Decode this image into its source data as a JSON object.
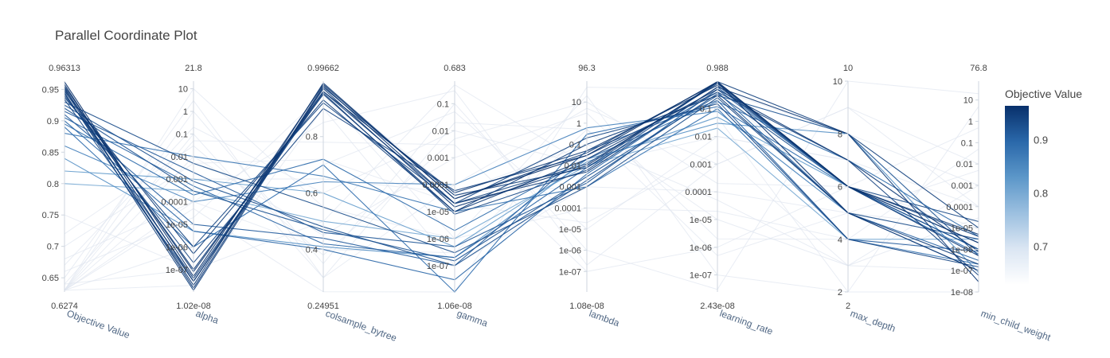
{
  "chart_data": {
    "type": "parallel_coordinates",
    "title": "Parallel Coordinate Plot",
    "colorbar": {
      "title": "Objective Value",
      "ticks": [
        "0.9",
        "0.8",
        "0.7"
      ],
      "range": [
        0.6274,
        0.96313
      ],
      "colors": [
        "#ffffff",
        "#dbe6f3",
        "#9cc0e0",
        "#5c97c9",
        "#2a68aa",
        "#08306b"
      ]
    },
    "axes": [
      {
        "label": "Objective Value",
        "scale": "linear",
        "range": [
          0.6274,
          0.96313
        ],
        "max_label": "0.96313",
        "min_label": "0.6274",
        "ticks": [
          {
            "v": 0.95,
            "t": "0.95"
          },
          {
            "v": 0.9,
            "t": "0.9"
          },
          {
            "v": 0.85,
            "t": "0.85"
          },
          {
            "v": 0.8,
            "t": "0.8"
          },
          {
            "v": 0.75,
            "t": "0.75"
          },
          {
            "v": 0.7,
            "t": "0.7"
          },
          {
            "v": 0.65,
            "t": "0.65"
          }
        ]
      },
      {
        "label": "alpha",
        "scale": "log",
        "range": [
          1.02e-08,
          21.8
        ],
        "max_label": "21.8",
        "min_label": "1.02e-08",
        "ticks": [
          {
            "v": 10,
            "t": "10"
          },
          {
            "v": 1,
            "t": "1"
          },
          {
            "v": 0.1,
            "t": "0.1"
          },
          {
            "v": 0.01,
            "t": "0.01"
          },
          {
            "v": 0.001,
            "t": "0.001"
          },
          {
            "v": 0.0001,
            "t": "0.0001"
          },
          {
            "v": 1e-05,
            "t": "1e-05"
          },
          {
            "v": 1e-06,
            "t": "1e-06"
          },
          {
            "v": 1e-07,
            "t": "1e-07"
          }
        ]
      },
      {
        "label": "colsample_bytree",
        "scale": "linear",
        "range": [
          0.24951,
          0.99662
        ],
        "max_label": "0.99662",
        "min_label": "0.24951",
        "ticks": [
          {
            "v": 0.8,
            "t": "0.8"
          },
          {
            "v": 0.6,
            "t": "0.6"
          },
          {
            "v": 0.4,
            "t": "0.4"
          }
        ]
      },
      {
        "label": "gamma",
        "scale": "log",
        "range": [
          1.06e-08,
          0.683
        ],
        "max_label": "0.683",
        "min_label": "1.06e-08",
        "ticks": [
          {
            "v": 0.1,
            "t": "0.1"
          },
          {
            "v": 0.01,
            "t": "0.01"
          },
          {
            "v": 0.001,
            "t": "0.001"
          },
          {
            "v": 0.0001,
            "t": "0.0001"
          },
          {
            "v": 1e-05,
            "t": "1e-05"
          },
          {
            "v": 1e-06,
            "t": "1e-06"
          },
          {
            "v": 1e-07,
            "t": "1e-07"
          }
        ]
      },
      {
        "label": "lambda",
        "scale": "log",
        "range": [
          1.08e-08,
          96.3
        ],
        "max_label": "96.3",
        "min_label": "1.08e-08",
        "ticks": [
          {
            "v": 10,
            "t": "10"
          },
          {
            "v": 1,
            "t": "1"
          },
          {
            "v": 0.1,
            "t": "0.1"
          },
          {
            "v": 0.01,
            "t": "0.01"
          },
          {
            "v": 0.001,
            "t": "0.001"
          },
          {
            "v": 0.0001,
            "t": "0.0001"
          },
          {
            "v": 1e-05,
            "t": "1e-05"
          },
          {
            "v": 1e-06,
            "t": "1e-06"
          },
          {
            "v": 1e-07,
            "t": "1e-07"
          }
        ]
      },
      {
        "label": "learning_rate",
        "scale": "log",
        "range": [
          2.43e-08,
          0.988
        ],
        "max_label": "0.988",
        "min_label": "2.43e-08",
        "ticks": [
          {
            "v": 0.1,
            "t": "0.1"
          },
          {
            "v": 0.01,
            "t": "0.01"
          },
          {
            "v": 0.001,
            "t": "0.001"
          },
          {
            "v": 0.0001,
            "t": "0.0001"
          },
          {
            "v": 1e-05,
            "t": "1e-05"
          },
          {
            "v": 1e-06,
            "t": "1e-06"
          },
          {
            "v": 1e-07,
            "t": "1e-07"
          }
        ]
      },
      {
        "label": "max_depth",
        "scale": "linear",
        "range": [
          2,
          10
        ],
        "max_label": "10",
        "min_label": "2",
        "ticks": [
          {
            "v": 10,
            "t": "10"
          },
          {
            "v": 8,
            "t": "8"
          },
          {
            "v": 6,
            "t": "6"
          },
          {
            "v": 4,
            "t": "4"
          },
          {
            "v": 2,
            "t": "2"
          }
        ]
      },
      {
        "label": "min_child_weight",
        "scale": "log",
        "range": [
          1e-08,
          76.8
        ],
        "max_label": "76.8",
        "min_label": "",
        "ticks": [
          {
            "v": 10,
            "t": "10"
          },
          {
            "v": 1,
            "t": "1"
          },
          {
            "v": 0.1,
            "t": "0.1"
          },
          {
            "v": 0.01,
            "t": "0.01"
          },
          {
            "v": 0.001,
            "t": "0.001"
          },
          {
            "v": 0.0001,
            "t": "0.0001"
          },
          {
            "v": 1e-05,
            "t": "1e-05"
          },
          {
            "v": 1e-06,
            "t": "1e-06"
          },
          {
            "v": 1e-07,
            "t": "1e-07"
          },
          {
            "v": 1e-08,
            "t": "1e-08"
          }
        ]
      }
    ],
    "trials": [
      {
        "v": [
          0.962,
          5e-08,
          0.985,
          3e-05,
          0.03,
          0.95,
          6,
          2e-06
        ]
      },
      {
        "v": [
          0.958,
          3e-08,
          0.97,
          1.5e-05,
          0.01,
          0.9,
          5,
          1e-07
        ]
      },
      {
        "v": [
          0.955,
          8e-08,
          0.96,
          5e-05,
          0.05,
          0.7,
          6,
          5e-06
        ]
      },
      {
        "v": [
          0.953,
          1.5e-08,
          0.98,
          2e-05,
          0.005,
          0.6,
          8,
          3e-08
        ]
      },
      {
        "v": [
          0.951,
          1e-07,
          0.95,
          1e-05,
          0.02,
          0.5,
          7,
          8e-07
        ]
      },
      {
        "v": [
          0.949,
          2e-08,
          0.99,
          3e-05,
          0.04,
          0.88,
          6,
          5e-07
        ]
      },
      {
        "v": [
          0.947,
          5e-07,
          0.93,
          1e-05,
          0.1,
          0.3,
          5,
          2e-07
        ]
      },
      {
        "v": [
          0.945,
          1.2e-08,
          0.975,
          4e-05,
          0.008,
          0.95,
          8,
          1e-05
        ]
      },
      {
        "v": [
          0.943,
          4e-08,
          0.96,
          2e-05,
          0.012,
          0.8,
          6,
          4e-06
        ]
      },
      {
        "v": [
          0.94,
          2e-07,
          0.9,
          6e-05,
          0.03,
          0.4,
          7,
          6e-08
        ]
      },
      {
        "v": [
          0.937,
          1e-06,
          0.92,
          2e-05,
          0.2,
          0.15,
          4,
          1.5e-07
        ]
      },
      {
        "v": [
          0.934,
          3e-08,
          0.955,
          8e-06,
          0.006,
          0.9,
          6,
          2e-05
        ]
      },
      {
        "v": [
          0.93,
          0.005,
          0.55,
          3e-07,
          0.001,
          0.25,
          5,
          3e-06
        ]
      },
      {
        "v": [
          0.925,
          0.0008,
          0.48,
          1e-07,
          0.002,
          0.35,
          6,
          1e-06
        ]
      },
      {
        "v": [
          0.92,
          0.0003,
          0.47,
          1.5e-07,
          0.003,
          0.3,
          8,
          5e-07
        ]
      },
      {
        "v": [
          0.915,
          0.002,
          0.46,
          5e-07,
          0.0015,
          0.5,
          6,
          2e-06
        ]
      },
      {
        "v": [
          0.91,
          1e-05,
          0.44,
          1e-07,
          0.05,
          0.2,
          4,
          8e-07
        ]
      },
      {
        "v": [
          0.905,
          0.0005,
          0.42,
          2e-07,
          0.008,
          0.4,
          5,
          3e-07
        ]
      },
      {
        "v": [
          0.9,
          5e-06,
          0.4,
          3e-08,
          0.004,
          0.6,
          6,
          1e-06
        ]
      },
      {
        "v": [
          0.895,
          0.0002,
          0.72,
          2e-06,
          0.02,
          0.18,
          7,
          4e-06
        ]
      },
      {
        "v": [
          0.89,
          1e-06,
          0.7,
          1.06e-08,
          0.3,
          0.12,
          6,
          6e-07
        ]
      },
      {
        "v": [
          0.88,
          0.01,
          0.66,
          1e-05,
          0.001,
          0.1,
          4,
          2e-07
        ]
      },
      {
        "v": [
          0.86,
          0.0001,
          0.64,
          0.0001,
          0.6,
          0.08,
          5,
          1e-07
        ]
      },
      {
        "v": [
          0.84,
          5e-06,
          0.41,
          2e-07,
          0.02,
          0.03,
          8,
          8e-08
        ]
      },
      {
        "v": [
          0.82,
          0.001,
          0.6,
          5e-07,
          0.015,
          0.05,
          6,
          1e-06
        ]
      },
      {
        "v": [
          0.8,
          0.0003,
          0.5,
          1e-06,
          0.01,
          0.02,
          4,
          3e-06
        ]
      },
      {
        "v": [
          0.75,
          1e-07,
          0.98,
          5e-05,
          0.001,
          0.6,
          5,
          1e-05
        ]
      },
      {
        "v": [
          0.63,
          0.1,
          0.3,
          0.02,
          0.5,
          1e-05,
          3,
          0.001
        ]
      },
      {
        "v": [
          0.63,
          0.0001,
          0.85,
          0.3,
          2e-07,
          0.001,
          9,
          0.0001
        ]
      },
      {
        "v": [
          0.63,
          10,
          0.55,
          1e-06,
          20,
          1e-07,
          2,
          5
        ]
      },
      {
        "v": [
          0.63,
          1e-06,
          0.7,
          0.05,
          1e-05,
          0.01,
          7,
          1e-06
        ]
      },
      {
        "v": [
          0.63,
          0.01,
          0.45,
          0.001,
          3,
          2e-06,
          4,
          0.05
        ]
      },
      {
        "v": [
          0.63,
          2e-08,
          0.9,
          1e-07,
          0.001,
          0.0001,
          5,
          1e-07
        ]
      },
      {
        "v": [
          0.63,
          1,
          0.35,
          0.1,
          1e-06,
          3e-08,
          10,
          20
        ]
      },
      {
        "v": [
          0.63,
          0.001,
          0.65,
          5e-05,
          0.1,
          5e-05,
          3,
          3e-05
        ]
      },
      {
        "v": [
          0.63,
          5e-05,
          0.25,
          1e-08,
          50,
          0.5,
          8,
          0.001
        ]
      },
      {
        "v": [
          0.64,
          0.05,
          0.78,
          0.003,
          1e-07,
          1e-06,
          6,
          0.5
        ]
      },
      {
        "v": [
          0.64,
          1e-07,
          0.5,
          0.5,
          0.01,
          0.05,
          2,
          1e-08
        ]
      },
      {
        "v": [
          0.65,
          3,
          0.3,
          0.0001,
          5,
          0.001,
          9,
          0.01
        ]
      },
      {
        "v": [
          0.66,
          2e-05,
          0.95,
          1e-06,
          0.0001,
          2e-05,
          4,
          1e-06
        ]
      },
      {
        "v": [
          0.67,
          0.2,
          0.6,
          0.01,
          0.01,
          0.01,
          7,
          0.0001
        ]
      },
      {
        "v": [
          0.68,
          0.0001,
          0.4,
          3e-07,
          0.5,
          5e-07,
          5,
          0.005
        ]
      },
      {
        "v": [
          0.7,
          0.005,
          0.72,
          2e-05,
          2e-05,
          0.003,
          3,
          1e-07
        ]
      },
      {
        "v": [
          0.72,
          0.03,
          0.38,
          0.005,
          10,
          0.0002,
          6,
          1e-05
        ]
      }
    ]
  }
}
